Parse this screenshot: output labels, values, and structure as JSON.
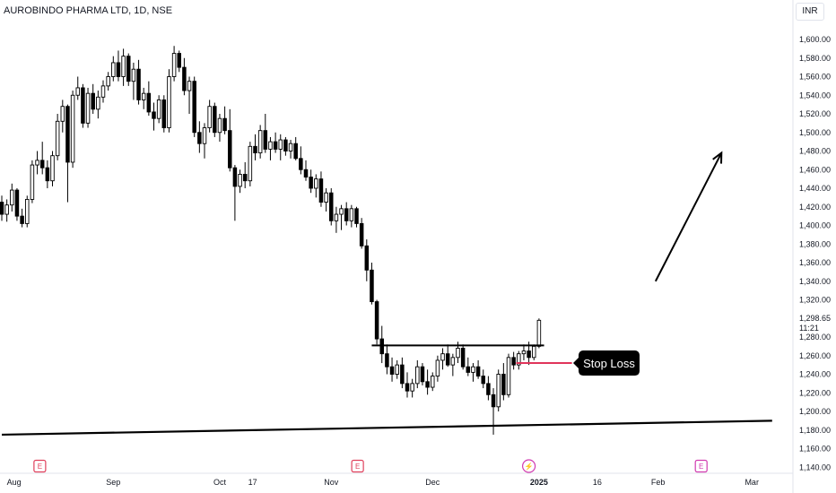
{
  "header": {
    "title": "AUROBINDO PHARMA LTD, 1D, NSE",
    "currency": "INR"
  },
  "price_axis": {
    "ticks": [
      "1,600.00",
      "1,580.00",
      "1,560.00",
      "1,540.00",
      "1,520.00",
      "1,500.00",
      "1,480.00",
      "1,460.00",
      "1,440.00",
      "1,420.00",
      "1,400.00",
      "1,380.00",
      "1,360.00",
      "1,340.00",
      "1,320.00",
      "1,280.00",
      "1,260.00",
      "1,240.00",
      "1,220.00",
      "1,200.00",
      "1,180.00",
      "1,160.00",
      "1,140.00"
    ],
    "tick_values": [
      1600,
      1580,
      1560,
      1540,
      1520,
      1500,
      1480,
      1460,
      1440,
      1420,
      1400,
      1380,
      1360,
      1340,
      1320,
      1280,
      1260,
      1240,
      1220,
      1200,
      1180,
      1160,
      1140
    ],
    "last_price": "1,298.65",
    "countdown": "11:21"
  },
  "time_axis": {
    "labels": [
      "Aug",
      "Sep",
      "Oct",
      "17",
      "Nov",
      "Dec",
      "2025",
      "16",
      "Feb",
      "Mar"
    ]
  },
  "event_markers": [
    {
      "type": "earnings",
      "label": "E",
      "color": "#e0405c"
    },
    {
      "type": "earnings",
      "label": "E",
      "color": "#e0405c"
    },
    {
      "type": "dividend",
      "label": "⚡",
      "color": "#d13bb0"
    },
    {
      "type": "earnings",
      "label": "E",
      "color": "#d13bb0"
    }
  ],
  "annotations": {
    "stop_loss_label": "Stop Loss",
    "resistance_level": 1271,
    "stop_loss_level": 1252,
    "support_trendline": [
      [
        0,
        1175
      ],
      [
        152,
        1190
      ]
    ],
    "arrow": {
      "from": [
        129,
        1340
      ],
      "to": [
        142,
        1478
      ]
    }
  },
  "chart_data": {
    "type": "candlestick",
    "title": "AUROBINDO PHARMA LTD, 1D, NSE",
    "ylim": [
      1136,
      1620
    ],
    "x_domain": [
      0,
      153
    ],
    "colors": {
      "up": "#ffffff",
      "down": "#000000",
      "outline": "#000000"
    },
    "candles": [
      [
        1425,
        1432,
        1405,
        1412
      ],
      [
        1412,
        1428,
        1404,
        1422
      ],
      [
        1422,
        1445,
        1415,
        1438
      ],
      [
        1438,
        1440,
        1405,
        1410
      ],
      [
        1410,
        1418,
        1398,
        1402
      ],
      [
        1402,
        1432,
        1398,
        1428
      ],
      [
        1428,
        1470,
        1424,
        1465
      ],
      [
        1465,
        1480,
        1455,
        1470
      ],
      [
        1470,
        1490,
        1455,
        1462
      ],
      [
        1462,
        1470,
        1440,
        1448
      ],
      [
        1448,
        1480,
        1442,
        1475
      ],
      [
        1475,
        1520,
        1470,
        1512
      ],
      [
        1512,
        1535,
        1500,
        1528
      ],
      [
        1528,
        1530,
        1425,
        1468
      ],
      [
        1468,
        1545,
        1462,
        1540
      ],
      [
        1540,
        1560,
        1535,
        1548
      ],
      [
        1548,
        1552,
        1505,
        1510
      ],
      [
        1510,
        1548,
        1505,
        1542
      ],
      [
        1542,
        1552,
        1520,
        1525
      ],
      [
        1525,
        1545,
        1515,
        1538
      ],
      [
        1538,
        1556,
        1532,
        1550
      ],
      [
        1550,
        1565,
        1545,
        1560
      ],
      [
        1560,
        1582,
        1555,
        1575
      ],
      [
        1575,
        1588,
        1555,
        1560
      ],
      [
        1560,
        1590,
        1550,
        1582
      ],
      [
        1582,
        1585,
        1550,
        1555
      ],
      [
        1555,
        1575,
        1535,
        1568
      ],
      [
        1568,
        1578,
        1530,
        1535
      ],
      [
        1535,
        1548,
        1525,
        1542
      ],
      [
        1542,
        1555,
        1518,
        1522
      ],
      [
        1522,
        1532,
        1502,
        1515
      ],
      [
        1515,
        1540,
        1510,
        1535
      ],
      [
        1535,
        1540,
        1500,
        1505
      ],
      [
        1505,
        1568,
        1500,
        1560
      ],
      [
        1560,
        1593,
        1555,
        1585
      ],
      [
        1585,
        1588,
        1565,
        1570
      ],
      [
        1570,
        1580,
        1540,
        1545
      ],
      [
        1545,
        1560,
        1520,
        1555
      ],
      [
        1555,
        1560,
        1495,
        1500
      ],
      [
        1500,
        1512,
        1478,
        1488
      ],
      [
        1488,
        1510,
        1472,
        1505
      ],
      [
        1505,
        1535,
        1500,
        1528
      ],
      [
        1528,
        1532,
        1495,
        1500
      ],
      [
        1500,
        1520,
        1490,
        1515
      ],
      [
        1515,
        1528,
        1498,
        1502
      ],
      [
        1502,
        1525,
        1458,
        1462
      ],
      [
        1462,
        1465,
        1405,
        1442
      ],
      [
        1442,
        1460,
        1435,
        1455
      ],
      [
        1455,
        1468,
        1440,
        1448
      ],
      [
        1448,
        1490,
        1442,
        1485
      ],
      [
        1485,
        1498,
        1470,
        1478
      ],
      [
        1478,
        1508,
        1472,
        1502
      ],
      [
        1502,
        1520,
        1478,
        1482
      ],
      [
        1482,
        1495,
        1470,
        1490
      ],
      [
        1490,
        1500,
        1478,
        1482
      ],
      [
        1482,
        1498,
        1470,
        1492
      ],
      [
        1492,
        1495,
        1475,
        1480
      ],
      [
        1480,
        1492,
        1472,
        1488
      ],
      [
        1488,
        1495,
        1470,
        1472
      ],
      [
        1472,
        1485,
        1455,
        1460
      ],
      [
        1460,
        1470,
        1448,
        1452
      ],
      [
        1452,
        1460,
        1435,
        1440
      ],
      [
        1440,
        1455,
        1430,
        1450
      ],
      [
        1450,
        1458,
        1420,
        1425
      ],
      [
        1425,
        1440,
        1415,
        1435
      ],
      [
        1435,
        1440,
        1400,
        1405
      ],
      [
        1405,
        1420,
        1392,
        1412
      ],
      [
        1412,
        1422,
        1395,
        1418
      ],
      [
        1418,
        1425,
        1400,
        1405
      ],
      [
        1405,
        1422,
        1398,
        1418
      ],
      [
        1418,
        1420,
        1398,
        1402
      ],
      [
        1402,
        1408,
        1375,
        1378
      ],
      [
        1378,
        1385,
        1340,
        1352
      ],
      [
        1352,
        1360,
        1315,
        1318
      ],
      [
        1318,
        1320,
        1272,
        1278
      ],
      [
        1278,
        1292,
        1252,
        1262
      ],
      [
        1262,
        1272,
        1240,
        1248
      ],
      [
        1248,
        1258,
        1232,
        1240
      ],
      [
        1240,
        1255,
        1235,
        1250
      ],
      [
        1250,
        1258,
        1225,
        1230
      ],
      [
        1230,
        1242,
        1215,
        1222
      ],
      [
        1222,
        1235,
        1215,
        1230
      ],
      [
        1230,
        1255,
        1225,
        1248
      ],
      [
        1248,
        1252,
        1228,
        1232
      ],
      [
        1232,
        1245,
        1218,
        1226
      ],
      [
        1226,
        1242,
        1222,
        1238
      ],
      [
        1238,
        1260,
        1232,
        1255
      ],
      [
        1255,
        1268,
        1245,
        1262
      ],
      [
        1262,
        1272,
        1248,
        1250
      ],
      [
        1250,
        1262,
        1238,
        1258
      ],
      [
        1258,
        1275,
        1252,
        1268
      ],
      [
        1268,
        1272,
        1245,
        1248
      ],
      [
        1248,
        1258,
        1238,
        1242
      ],
      [
        1242,
        1252,
        1232,
        1248
      ],
      [
        1248,
        1255,
        1235,
        1238
      ],
      [
        1238,
        1245,
        1225,
        1230
      ],
      [
        1230,
        1238,
        1212,
        1218
      ],
      [
        1218,
        1225,
        1175,
        1205
      ],
      [
        1205,
        1245,
        1200,
        1240
      ],
      [
        1240,
        1252,
        1212,
        1218
      ],
      [
        1218,
        1262,
        1215,
        1258
      ],
      [
        1258,
        1264,
        1245,
        1250
      ],
      [
        1250,
        1265,
        1245,
        1262
      ],
      [
        1262,
        1272,
        1255,
        1265
      ],
      [
        1265,
        1275,
        1250,
        1258
      ],
      [
        1258,
        1272,
        1255,
        1270
      ],
      [
        1270,
        1300,
        1268,
        1298
      ]
    ]
  }
}
